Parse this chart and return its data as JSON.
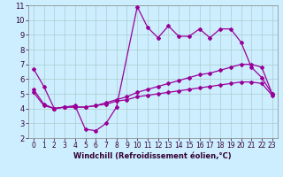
{
  "x": [
    0,
    1,
    2,
    3,
    4,
    5,
    6,
    7,
    8,
    9,
    10,
    11,
    12,
    13,
    14,
    15,
    16,
    17,
    18,
    19,
    20,
    21,
    22,
    23
  ],
  "line1": [
    6.7,
    5.5,
    4.0,
    4.1,
    4.2,
    2.6,
    2.5,
    3.0,
    4.1,
    null,
    10.9,
    9.5,
    8.8,
    9.6,
    8.9,
    8.9,
    9.4,
    8.8,
    9.4,
    9.4,
    8.5,
    6.8,
    6.1,
    5.0
  ],
  "line2": [
    5.3,
    4.3,
    4.0,
    4.1,
    4.1,
    4.1,
    4.2,
    4.4,
    4.6,
    4.8,
    5.1,
    5.3,
    5.5,
    5.7,
    5.9,
    6.1,
    6.3,
    6.4,
    6.6,
    6.8,
    7.0,
    7.0,
    6.8,
    5.0
  ],
  "line3": [
    5.1,
    4.2,
    4.0,
    4.1,
    4.1,
    4.1,
    4.2,
    4.3,
    4.5,
    4.6,
    4.8,
    4.9,
    5.0,
    5.1,
    5.2,
    5.3,
    5.4,
    5.5,
    5.6,
    5.7,
    5.8,
    5.8,
    5.7,
    4.9
  ],
  "color": "#990099",
  "bg_color": "#cceeff",
  "xlabel": "Windchill (Refroidissement éolien,°C)",
  "xlim": [
    -0.5,
    23.5
  ],
  "ylim": [
    2,
    11
  ],
  "yticks": [
    2,
    3,
    4,
    5,
    6,
    7,
    8,
    9,
    10,
    11
  ],
  "xticks": [
    0,
    1,
    2,
    3,
    4,
    5,
    6,
    7,
    8,
    9,
    10,
    11,
    12,
    13,
    14,
    15,
    16,
    17,
    18,
    19,
    20,
    21,
    22,
    23
  ],
  "grid_color": "#aacccc",
  "markersize": 2.0,
  "linewidth": 0.9,
  "xlabel_fontsize": 6.0,
  "tick_fontsize": 5.5
}
